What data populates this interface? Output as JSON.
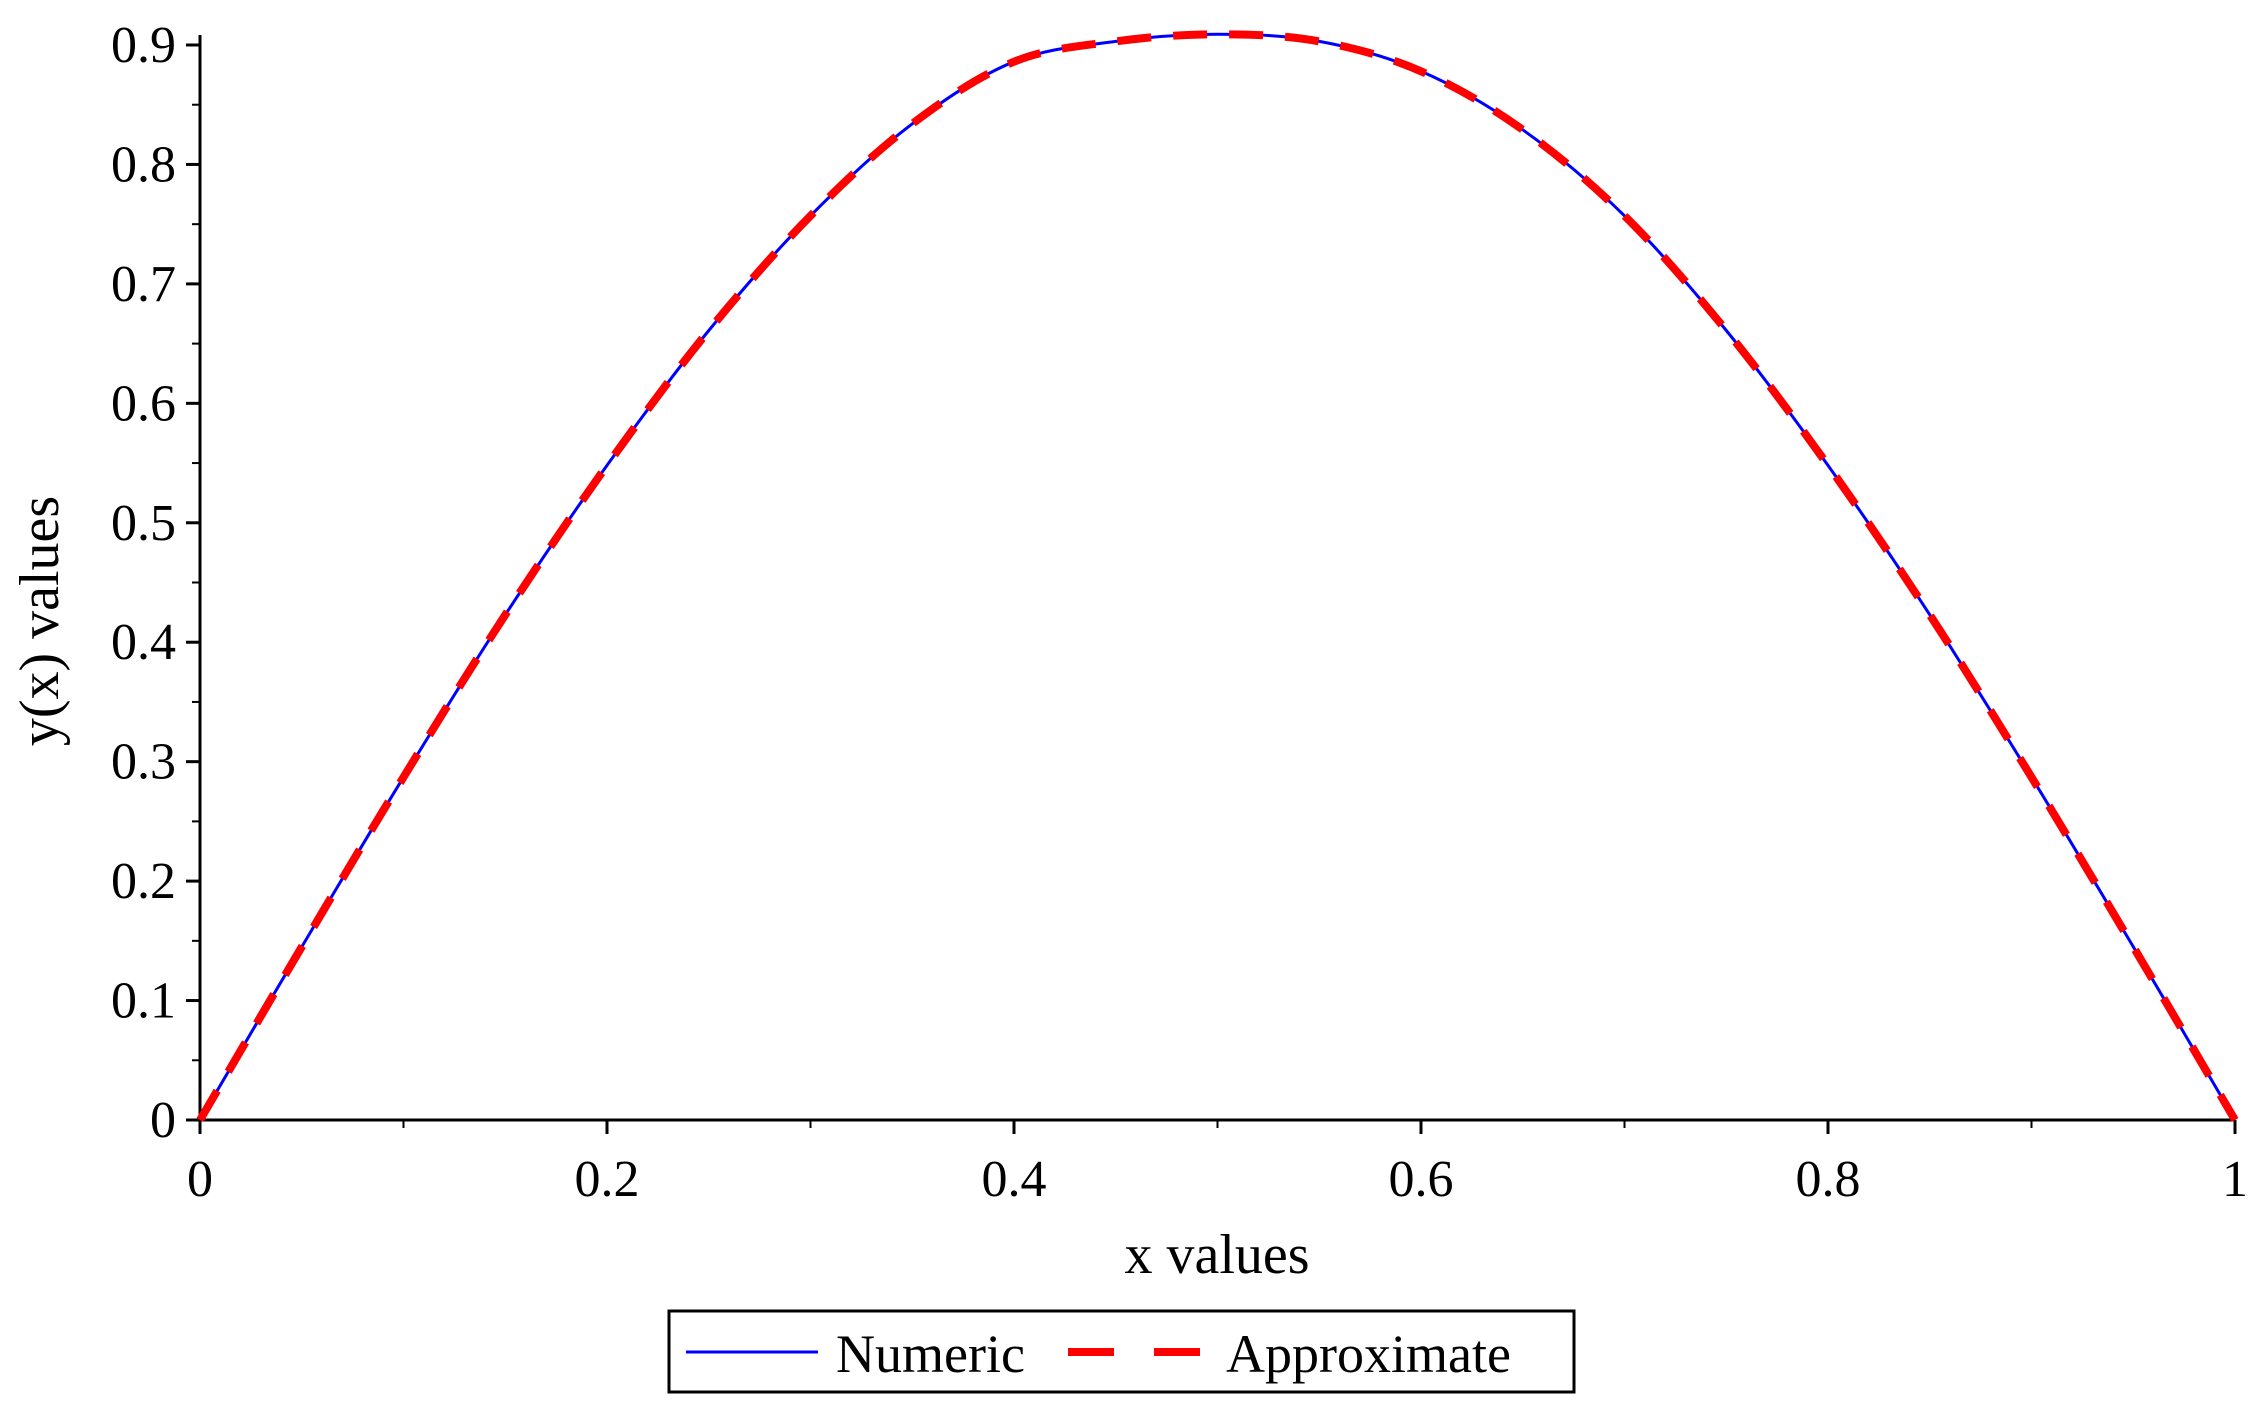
{
  "chart_data": {
    "type": "line",
    "xlabel": "x values",
    "ylabel": "y(x) values",
    "xlim": [
      0,
      1
    ],
    "ylim": [
      0,
      0.9
    ],
    "x_ticks": [
      "0",
      "0.2",
      "0.4",
      "0.6",
      "0.8",
      "1"
    ],
    "y_ticks": [
      "0",
      "0.1",
      "0.2",
      "0.3",
      "0.4",
      "0.5",
      "0.6",
      "0.7",
      "0.8",
      "0.9"
    ],
    "legend_position": "bottom-center",
    "grid": false,
    "x": [
      0,
      0.05,
      0.1,
      0.15,
      0.2,
      0.25,
      0.3,
      0.35,
      0.4,
      0.45,
      0.5,
      0.55,
      0.6,
      0.65,
      0.7,
      0.75,
      0.8,
      0.85,
      0.9,
      0.95,
      1.0
    ],
    "series": [
      {
        "name": "Numeric",
        "color": "#0000ff",
        "style": "solid",
        "values": [
          0,
          0.145,
          0.287,
          0.423,
          0.548,
          0.661,
          0.757,
          0.834,
          0.886,
          0.903,
          0.909,
          0.903,
          0.878,
          0.829,
          0.757,
          0.661,
          0.548,
          0.423,
          0.287,
          0.145,
          0
        ]
      },
      {
        "name": "Approximate",
        "color": "#ff0000",
        "style": "dashed",
        "values": [
          0,
          0.145,
          0.287,
          0.423,
          0.548,
          0.661,
          0.757,
          0.834,
          0.886,
          0.903,
          0.909,
          0.903,
          0.878,
          0.829,
          0.757,
          0.661,
          0.548,
          0.423,
          0.287,
          0.145,
          0
        ]
      }
    ]
  }
}
